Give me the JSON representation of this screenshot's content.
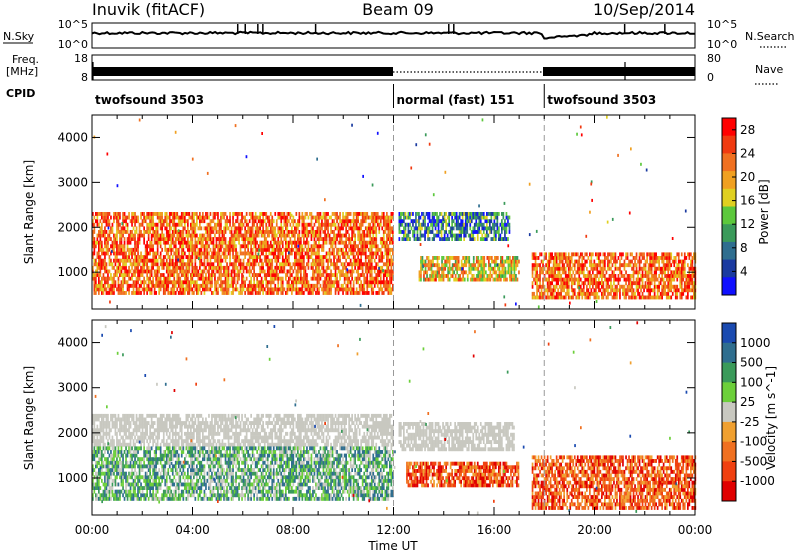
{
  "header": {
    "station": "Inuvik (fitACF)",
    "beam": "Beam 09",
    "date": "10/Sep/2014"
  },
  "noise_panel": {
    "left_label": "N.Sky",
    "left_ticks": [
      "10^5",
      "10^0"
    ],
    "right_label": "N.Search",
    "right_ticks": [
      "10^5",
      "10^0"
    ]
  },
  "freq_panel": {
    "left_label_line1": "Freq.",
    "left_label_line2": "[MHz]",
    "left_ticks": [
      "18",
      "8"
    ],
    "right_label": "Nave",
    "right_ticks": [
      "80",
      "0"
    ]
  },
  "cpid": {
    "label": "CPID",
    "segments": [
      {
        "text": "twofsound 3503",
        "start_h": 0,
        "end_h": 12
      },
      {
        "text": "normal (fast) 151",
        "start_h": 12,
        "end_h": 18
      },
      {
        "text": "twofsound 3503",
        "start_h": 18,
        "end_h": 24
      }
    ]
  },
  "colors": {
    "power": [
      "#1010ff",
      "#1a3aa0",
      "#2f6e8f",
      "#3a9a5a",
      "#5cc83c",
      "#e0d020",
      "#f0a020",
      "#f07020",
      "#f03a10",
      "#ff0000"
    ],
    "velocity": [
      "#e00000",
      "#f04010",
      "#f07020",
      "#f0a030",
      "#c8c8c0",
      "#6ccf3a",
      "#3a9a5a",
      "#2f6e8f",
      "#1a4ab0"
    ]
  },
  "chart_data": [
    {
      "type": "heatmap",
      "title": "",
      "xlabel": "Time UT",
      "ylabel": "Slant Range [km]",
      "x_ticks": [
        "00:00",
        "04:00",
        "08:00",
        "12:00",
        "16:00",
        "20:00",
        "00:00"
      ],
      "x_range_hours": [
        0,
        24
      ],
      "y_ticks": [
        1000,
        2000,
        3000,
        4000
      ],
      "ylim": [
        180,
        4500
      ],
      "colorbar": {
        "label": "Power [dB]",
        "ticks": [
          4,
          8,
          12,
          16,
          20,
          24,
          28
        ],
        "range": [
          0,
          30
        ]
      },
      "dashed_boundaries_h": [
        12,
        18
      ],
      "echo_bands": [
        {
          "t_start": 0.0,
          "t_end": 12.0,
          "r_low": 500,
          "r_high": 2300,
          "value": "high"
        },
        {
          "t_start": 12.2,
          "t_end": 16.6,
          "r_low": 1700,
          "r_high": 2300,
          "value": "low"
        },
        {
          "t_start": 13.0,
          "t_end": 17.0,
          "r_low": 800,
          "r_high": 1300,
          "value": "mid"
        },
        {
          "t_start": 17.5,
          "t_end": 24.0,
          "r_low": 400,
          "r_high": 1400,
          "value": "high"
        }
      ]
    },
    {
      "type": "heatmap",
      "title": "",
      "xlabel": "Time UT",
      "ylabel": "Slant Range [km]",
      "x_ticks": [
        "00:00",
        "04:00",
        "08:00",
        "12:00",
        "16:00",
        "20:00",
        "00:00"
      ],
      "x_range_hours": [
        0,
        24
      ],
      "y_ticks": [
        1000,
        2000,
        3000,
        4000
      ],
      "ylim": [
        180,
        4500
      ],
      "colorbar": {
        "label": "Velocity [m s^-1]",
        "tick_labels": [
          "1000",
          "500",
          "100",
          "25",
          "-25",
          "-100",
          "-500",
          "-1000"
        ]
      },
      "dashed_boundaries_h": [
        12,
        18
      ],
      "echo_bands": [
        {
          "t_start": 0.0,
          "t_end": 12.0,
          "r_low": 1700,
          "r_high": 2400,
          "value": "near-zero"
        },
        {
          "t_start": 0.0,
          "t_end": 12.0,
          "r_low": 500,
          "r_high": 1700,
          "value": "positive"
        },
        {
          "t_start": 12.2,
          "t_end": 16.8,
          "r_low": 1600,
          "r_high": 2200,
          "value": "near-zero"
        },
        {
          "t_start": 12.5,
          "t_end": 17.0,
          "r_low": 800,
          "r_high": 1300,
          "value": "negative"
        },
        {
          "t_start": 17.5,
          "t_end": 24.0,
          "r_low": 300,
          "r_high": 1500,
          "value": "negative"
        }
      ]
    }
  ]
}
